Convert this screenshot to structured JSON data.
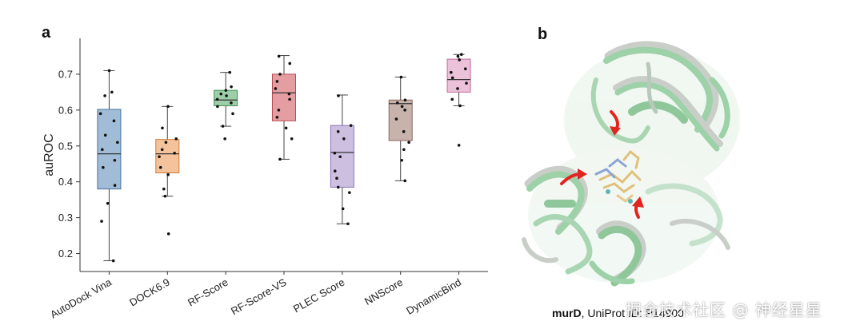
{
  "panels": {
    "a": "a",
    "b": "b"
  },
  "chart_data": {
    "type": "box",
    "title": "",
    "xlabel": "",
    "ylabel": "auROC",
    "ylim": [
      0.15,
      0.8
    ],
    "yticks": [
      0.2,
      0.3,
      0.4,
      0.5,
      0.6,
      0.7
    ],
    "grid": false,
    "categories": [
      "AutoDock Vina",
      "DOCK6.9",
      "RF-Score",
      "RF-Score-VS",
      "PLEC Score",
      "NNScore",
      "DynamicBind"
    ],
    "colors": [
      "#8fb0cf",
      "#f2b98a",
      "#8cc49a",
      "#df8d91",
      "#c3b4da",
      "#bea59d",
      "#e9b6d3"
    ],
    "edge_colors": [
      "#4a73a0",
      "#d07a35",
      "#3f9152",
      "#b84a52",
      "#8a73b8",
      "#8a665c",
      "#c26d9f"
    ],
    "boxes": [
      {
        "whislo": 0.18,
        "q1": 0.38,
        "med": 0.478,
        "q3": 0.602,
        "whishi": 0.71,
        "points": [
          0.18,
          0.29,
          0.34,
          0.39,
          0.44,
          0.46,
          0.49,
          0.51,
          0.53,
          0.57,
          0.59,
          0.64,
          0.65,
          0.71
        ]
      },
      {
        "whislo": 0.36,
        "q1": 0.425,
        "med": 0.478,
        "q3": 0.518,
        "whishi": 0.61,
        "points": [
          0.255,
          0.36,
          0.38,
          0.42,
          0.44,
          0.47,
          0.48,
          0.49,
          0.51,
          0.52,
          0.55,
          0.61
        ]
      },
      {
        "whislo": 0.555,
        "q1": 0.612,
        "med": 0.628,
        "q3": 0.655,
        "whishi": 0.705,
        "points": [
          0.52,
          0.555,
          0.59,
          0.61,
          0.62,
          0.63,
          0.64,
          0.645,
          0.655,
          0.665,
          0.705
        ]
      },
      {
        "whislo": 0.463,
        "q1": 0.57,
        "med": 0.648,
        "q3": 0.7,
        "whishi": 0.752,
        "points": [
          0.463,
          0.52,
          0.55,
          0.58,
          0.6,
          0.63,
          0.645,
          0.66,
          0.68,
          0.7,
          0.73,
          0.75
        ]
      },
      {
        "whislo": 0.283,
        "q1": 0.385,
        "med": 0.482,
        "q3": 0.557,
        "whishi": 0.642,
        "points": [
          0.283,
          0.325,
          0.37,
          0.385,
          0.41,
          0.43,
          0.47,
          0.48,
          0.52,
          0.54,
          0.557,
          0.64
        ]
      },
      {
        "whislo": 0.403,
        "q1": 0.515,
        "med": 0.618,
        "q3": 0.628,
        "whishi": 0.692,
        "points": [
          0.403,
          0.46,
          0.49,
          0.51,
          0.54,
          0.575,
          0.6,
          0.61,
          0.62,
          0.628,
          0.692
        ]
      },
      {
        "whislo": 0.612,
        "q1": 0.65,
        "med": 0.685,
        "q3": 0.742,
        "whishi": 0.755,
        "points": [
          0.502,
          0.612,
          0.63,
          0.66,
          0.675,
          0.69,
          0.705,
          0.715,
          0.74,
          0.75,
          0.755
        ]
      }
    ]
  },
  "structure_panel": {
    "caption_gene": "murD",
    "caption_rest": ", UniProt ID: P14900",
    "watermark": "掘金技术社区 @ 神经星星",
    "colors": {
      "protein_green": "#9dd1a8",
      "protein_grey": "#c9cec9",
      "ligand_gold": "#e0c07a",
      "ligand_blue": "#8da3d6",
      "arrow_red": "#e0261f"
    }
  }
}
